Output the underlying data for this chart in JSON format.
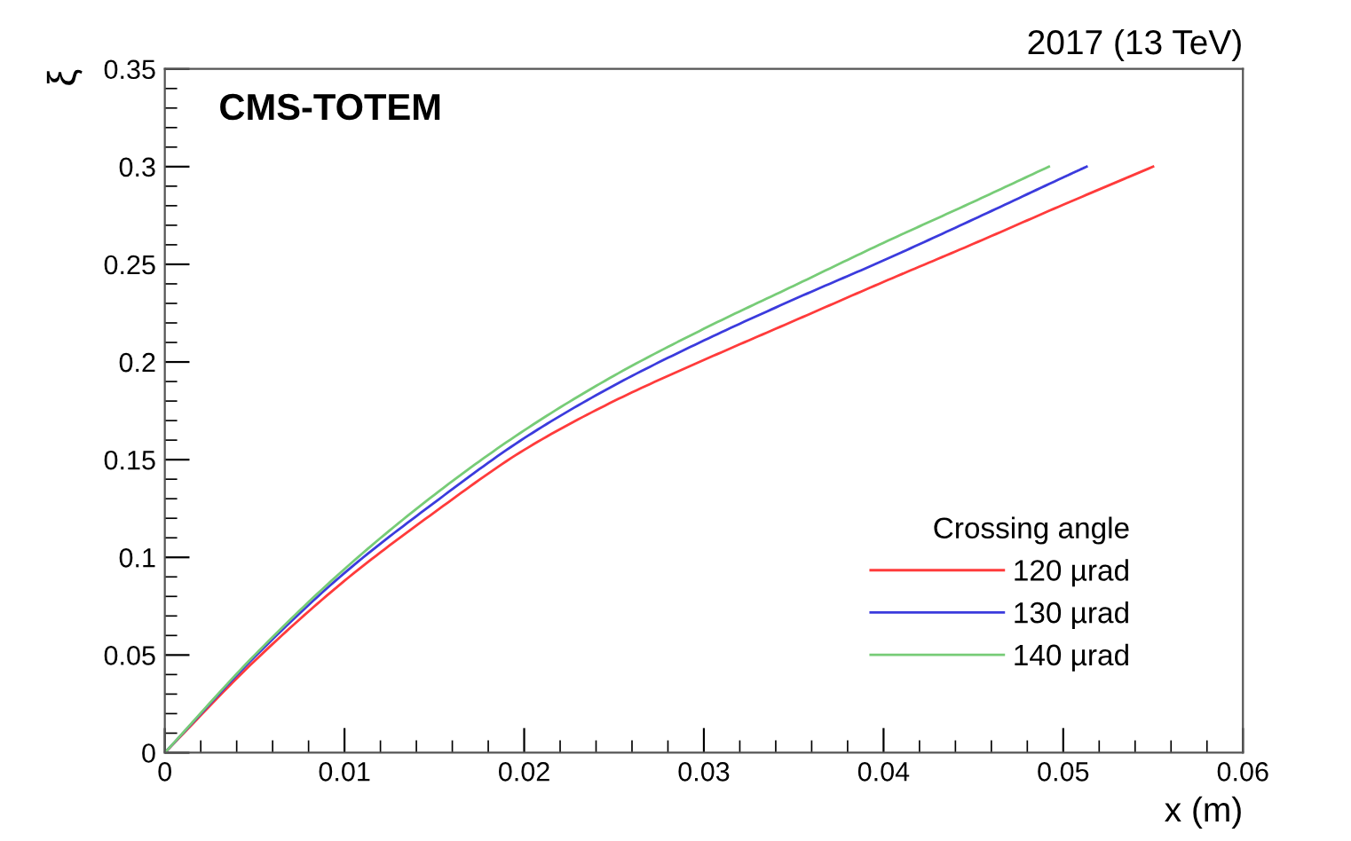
{
  "chart_data": {
    "type": "line",
    "title": "2017 (13 TeV)",
    "xlabel": "x (m)",
    "ylabel": "ξ",
    "legend_title": "Crossing angle",
    "annotations": [
      "CMS-TOTEM"
    ],
    "xlim": [
      0,
      0.06
    ],
    "xticks": [
      0,
      0.01,
      0.02,
      0.03,
      0.04,
      0.05,
      0.06
    ],
    "ylim": [
      0,
      0.35
    ],
    "yticks": [
      0,
      0.05,
      {
        "value": 0.1,
        "label": "0.1"
      },
      0.15,
      {
        "value": 0.2,
        "label": "0.2"
      },
      0.25,
      {
        "value": 0.3,
        "label": "0.3"
      },
      0.35
    ],
    "grid": false,
    "legend": "bottom right",
    "marker": "none",
    "line_style": "solid",
    "series": [
      {
        "name": "120 µrad",
        "color": "#ff3b3b",
        "x": [
          0,
          0.005,
          0.01,
          0.015,
          0.02,
          0.025,
          0.03,
          0.035,
          0.04,
          0.045,
          0.05,
          0.055
        ],
        "values": [
          0,
          0.047,
          0.088,
          0.123,
          0.155,
          0.18,
          0.201,
          0.221,
          0.241,
          0.2605,
          0.2805,
          0.3
        ]
      },
      {
        "name": "130 µrad",
        "color": "#3b3bdd",
        "x": [
          0,
          0.005,
          0.01,
          0.015,
          0.02,
          0.025,
          0.03,
          0.035,
          0.04,
          0.045,
          0.05,
          0.0513
        ],
        "values": [
          0,
          0.049,
          0.092,
          0.128,
          0.161,
          0.188,
          0.211,
          0.232,
          0.252,
          0.273,
          0.2945,
          0.3
        ]
      },
      {
        "name": "140 µrad",
        "color": "#77cc77",
        "x": [
          0,
          0.005,
          0.01,
          0.015,
          0.02,
          0.025,
          0.03,
          0.035,
          0.04,
          0.045,
          0.0492
        ],
        "values": [
          0,
          0.05,
          0.094,
          0.132,
          0.165,
          0.193,
          0.217,
          0.239,
          0.261,
          0.282,
          0.3
        ]
      }
    ]
  }
}
